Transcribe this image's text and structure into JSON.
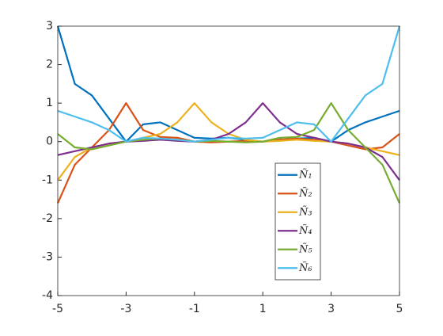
{
  "chart_data": {
    "type": "line",
    "x": [
      -5,
      -4.5,
      -4,
      -3.5,
      -3,
      -2.5,
      -2,
      -1.5,
      -1,
      -0.5,
      0,
      0.5,
      1,
      1.5,
      2,
      2.5,
      3,
      3.5,
      4,
      4.5,
      5
    ],
    "series": [
      {
        "name": "Ñ₁",
        "color": "#0072BD",
        "values": [
          3,
          1.5,
          1.2,
          0.6,
          0,
          0.45,
          0.5,
          0.3,
          0.1,
          0.08,
          0.1,
          0.05,
          0,
          0.05,
          0.08,
          0.1,
          0,
          0.3,
          0.5,
          0.65,
          0.8
        ]
      },
      {
        "name": "Ñ₂",
        "color": "#D95319",
        "values": [
          -1.6,
          -0.6,
          -0.15,
          0.3,
          1,
          0.3,
          0.12,
          0.1,
          0,
          -0.02,
          0,
          0.02,
          0,
          0.05,
          0.08,
          0.05,
          0,
          -0.1,
          -0.2,
          -0.15,
          0.2
        ]
      },
      {
        "name": "Ñ₃",
        "color": "#EDB120",
        "values": [
          -1,
          -0.4,
          -0.15,
          -0.05,
          0,
          0.1,
          0.2,
          0.5,
          1,
          0.5,
          0.2,
          0.05,
          0,
          0.02,
          0.05,
          0.02,
          0,
          -0.05,
          -0.15,
          -0.25,
          -0.35
        ]
      },
      {
        "name": "Ñ₄",
        "color": "#7E2F8E",
        "values": [
          -0.35,
          -0.25,
          -0.15,
          -0.05,
          0,
          0.02,
          0.05,
          0.02,
          0,
          0.05,
          0.2,
          0.5,
          1,
          0.5,
          0.2,
          0.1,
          0,
          -0.05,
          -0.15,
          -0.4,
          -1
        ]
      },
      {
        "name": "Ñ₅",
        "color": "#77AC30",
        "values": [
          0.2,
          -0.15,
          -0.2,
          -0.1,
          0,
          0.05,
          0.08,
          0.05,
          0,
          0.02,
          0,
          -0.02,
          0,
          0.1,
          0.12,
          0.3,
          1,
          0.3,
          -0.15,
          -0.6,
          -1.6
        ]
      },
      {
        "name": "Ñ₆",
        "color": "#4DBEEE",
        "values": [
          0.8,
          0.65,
          0.5,
          0.3,
          0,
          0.1,
          0.08,
          0.05,
          0,
          0.05,
          0.1,
          0.08,
          0.1,
          0.3,
          0.5,
          0.45,
          0,
          0.6,
          1.2,
          1.5,
          3
        ]
      }
    ],
    "xlim": [
      -5,
      5
    ],
    "xticks": [
      -5,
      -3,
      -1,
      1,
      3,
      5
    ],
    "ylim": [
      -4,
      3
    ],
    "yticks": [
      -4,
      -3,
      -2,
      -1,
      0,
      1,
      2,
      3
    ],
    "legend": "lower-right"
  }
}
